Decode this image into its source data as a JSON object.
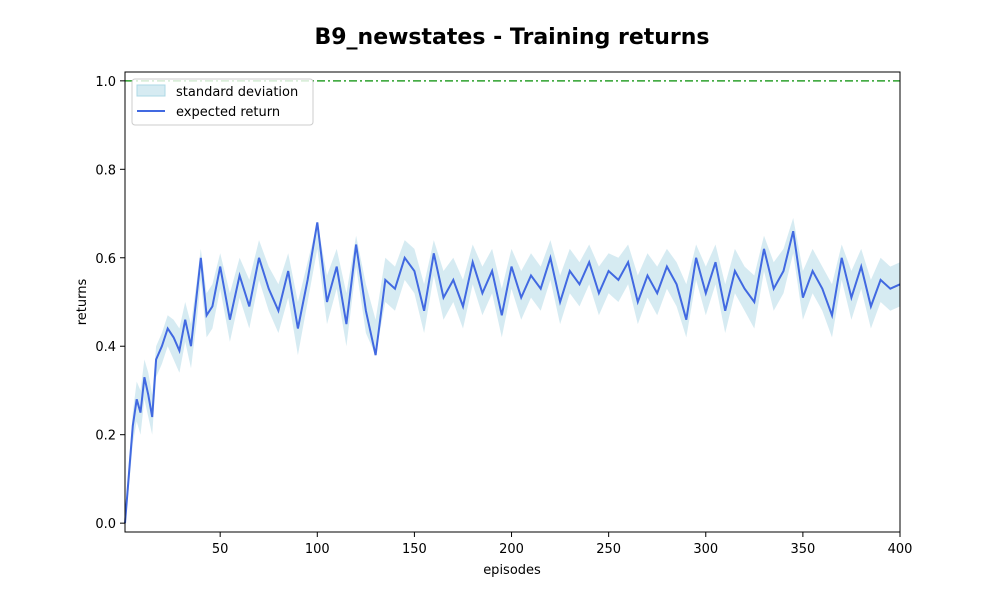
{
  "chart_data": {
    "type": "line",
    "title": "B9_newstates - Training returns",
    "xlabel": "episodes",
    "ylabel": "returns",
    "xlim": [
      1,
      400
    ],
    "ylim": [
      -0.02,
      1.02
    ],
    "xticks": [
      50,
      100,
      150,
      200,
      250,
      300,
      350,
      400
    ],
    "yticks": [
      0.0,
      0.2,
      0.4,
      0.6,
      0.8,
      1.0
    ],
    "xtick_labels": [
      "50",
      "100",
      "150",
      "200",
      "250",
      "300",
      "350",
      "400"
    ],
    "ytick_labels": [
      "0.0",
      "0.2",
      "0.4",
      "0.6",
      "0.8",
      "1.0"
    ],
    "grid": false,
    "legend_position": "upper-left",
    "reference_line": {
      "y": 1.0,
      "color": "#2ca02c",
      "style": "dash-dot"
    },
    "series": [
      {
        "name": "expected return",
        "kind": "line",
        "color": "#4169e1",
        "description": "mean return per episode; rises from ~0.0 at episode 1 to ~0.45 by episode 30, then fluctuates between roughly 0.45 and 0.65 until episode 400"
      },
      {
        "name": "standard deviation",
        "kind": "band",
        "color": "#add8e6"
      }
    ],
    "x": [
      1,
      3,
      5,
      7,
      9,
      11,
      13,
      15,
      17,
      20,
      23,
      26,
      29,
      32,
      35,
      38,
      40,
      43,
      46,
      50,
      55,
      60,
      65,
      70,
      75,
      80,
      85,
      90,
      95,
      100,
      105,
      110,
      115,
      120,
      125,
      130,
      135,
      140,
      145,
      150,
      155,
      160,
      165,
      170,
      175,
      180,
      185,
      190,
      195,
      200,
      205,
      210,
      215,
      220,
      225,
      230,
      235,
      240,
      245,
      250,
      255,
      260,
      265,
      270,
      275,
      280,
      285,
      290,
      295,
      300,
      305,
      310,
      315,
      320,
      325,
      330,
      335,
      340,
      345,
      350,
      355,
      360,
      365,
      370,
      375,
      380,
      385,
      390,
      395,
      400
    ],
    "y": [
      0.0,
      0.11,
      0.22,
      0.28,
      0.25,
      0.33,
      0.29,
      0.24,
      0.37,
      0.4,
      0.44,
      0.42,
      0.39,
      0.46,
      0.4,
      0.52,
      0.6,
      0.47,
      0.49,
      0.58,
      0.46,
      0.56,
      0.49,
      0.6,
      0.53,
      0.48,
      0.57,
      0.44,
      0.55,
      0.68,
      0.5,
      0.58,
      0.45,
      0.63,
      0.48,
      0.38,
      0.55,
      0.53,
      0.6,
      0.57,
      0.48,
      0.61,
      0.51,
      0.55,
      0.49,
      0.59,
      0.52,
      0.57,
      0.47,
      0.58,
      0.51,
      0.56,
      0.53,
      0.6,
      0.5,
      0.57,
      0.54,
      0.59,
      0.52,
      0.57,
      0.55,
      0.59,
      0.5,
      0.56,
      0.52,
      0.58,
      0.54,
      0.46,
      0.6,
      0.52,
      0.59,
      0.48,
      0.57,
      0.53,
      0.5,
      0.62,
      0.53,
      0.57,
      0.66,
      0.51,
      0.57,
      0.53,
      0.47,
      0.6,
      0.51,
      0.58,
      0.49,
      0.55,
      0.53,
      0.54
    ],
    "y_upper": [
      0.0,
      0.14,
      0.25,
      0.32,
      0.3,
      0.37,
      0.34,
      0.29,
      0.4,
      0.43,
      0.47,
      0.46,
      0.44,
      0.5,
      0.45,
      0.55,
      0.62,
      0.52,
      0.54,
      0.61,
      0.52,
      0.6,
      0.55,
      0.64,
      0.58,
      0.54,
      0.61,
      0.5,
      0.59,
      0.68,
      0.56,
      0.62,
      0.52,
      0.65,
      0.54,
      0.46,
      0.6,
      0.58,
      0.64,
      0.62,
      0.54,
      0.64,
      0.57,
      0.6,
      0.55,
      0.63,
      0.58,
      0.62,
      0.53,
      0.62,
      0.57,
      0.61,
      0.58,
      0.64,
      0.56,
      0.62,
      0.59,
      0.63,
      0.58,
      0.61,
      0.6,
      0.63,
      0.56,
      0.61,
      0.58,
      0.62,
      0.59,
      0.54,
      0.63,
      0.58,
      0.63,
      0.54,
      0.62,
      0.58,
      0.56,
      0.65,
      0.59,
      0.62,
      0.69,
      0.57,
      0.62,
      0.58,
      0.54,
      0.63,
      0.57,
      0.62,
      0.55,
      0.6,
      0.58,
      0.59
    ],
    "y_lower": [
      0.0,
      0.08,
      0.18,
      0.23,
      0.2,
      0.28,
      0.24,
      0.2,
      0.33,
      0.36,
      0.4,
      0.37,
      0.34,
      0.41,
      0.35,
      0.46,
      0.55,
      0.42,
      0.44,
      0.53,
      0.41,
      0.51,
      0.44,
      0.55,
      0.48,
      0.43,
      0.51,
      0.38,
      0.5,
      0.62,
      0.45,
      0.53,
      0.4,
      0.58,
      0.43,
      0.38,
      0.5,
      0.48,
      0.55,
      0.52,
      0.43,
      0.56,
      0.46,
      0.5,
      0.44,
      0.54,
      0.47,
      0.52,
      0.42,
      0.53,
      0.46,
      0.51,
      0.48,
      0.55,
      0.45,
      0.52,
      0.49,
      0.54,
      0.47,
      0.52,
      0.5,
      0.54,
      0.45,
      0.51,
      0.47,
      0.53,
      0.49,
      0.42,
      0.55,
      0.47,
      0.54,
      0.43,
      0.52,
      0.48,
      0.44,
      0.57,
      0.48,
      0.52,
      0.61,
      0.46,
      0.52,
      0.48,
      0.42,
      0.55,
      0.46,
      0.53,
      0.44,
      0.5,
      0.48,
      0.49
    ]
  }
}
